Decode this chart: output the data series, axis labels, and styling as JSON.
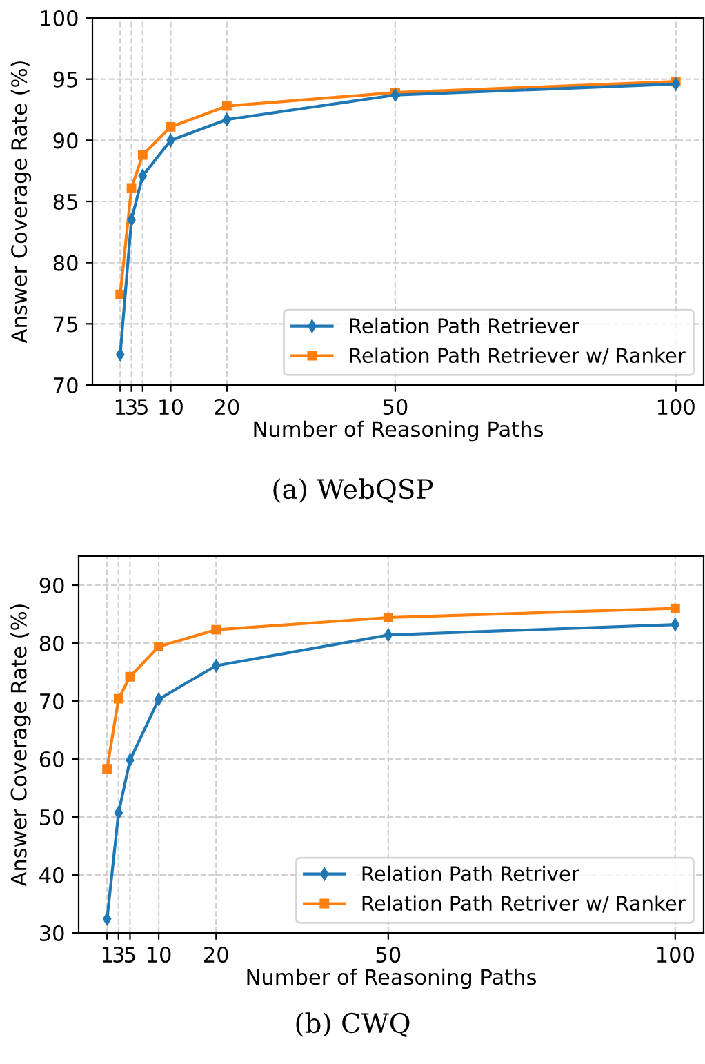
{
  "chart_data": [
    {
      "type": "line",
      "xlabel": "Number of Reasoning Paths",
      "ylabel": "Answer Coverage Rate (%)",
      "x": [
        1,
        3,
        5,
        10,
        20,
        50,
        100
      ],
      "series": [
        {
          "name": "Relation Path Retriever",
          "color": "#1f77b4",
          "marker": "diamond",
          "values": [
            72.5,
            83.5,
            87.1,
            90.0,
            91.7,
            93.7,
            94.6
          ]
        },
        {
          "name": "Relation Path Retriever w/ Ranker",
          "color": "#ff7f0e",
          "marker": "square",
          "values": [
            77.4,
            86.1,
            88.8,
            91.1,
            92.8,
            93.9,
            94.8
          ]
        }
      ],
      "xlim": [
        -3.95,
        104.95
      ],
      "xticks": [
        1,
        3,
        5,
        10,
        20,
        50,
        100
      ],
      "ylim": [
        70,
        100
      ],
      "yticks": [
        70,
        75,
        80,
        85,
        90,
        95,
        100
      ],
      "grid": true,
      "legend": "bottom right",
      "line_style": "solid",
      "annotations": [
        "(a) WebQSP"
      ]
    },
    {
      "type": "line",
      "xlabel": "Number of Reasoning Paths",
      "ylabel": "Answer Coverage Rate (%)",
      "x": [
        1,
        3,
        5,
        10,
        20,
        50,
        100
      ],
      "series": [
        {
          "name": "Relation Path Retriver",
          "color": "#1f77b4",
          "marker": "diamond",
          "values": [
            32.4,
            50.7,
            59.8,
            70.3,
            76.1,
            81.4,
            83.2
          ]
        },
        {
          "name": "Relation Path Retriver w/ Ranker",
          "color": "#ff7f0e",
          "marker": "square",
          "values": [
            58.3,
            70.4,
            74.2,
            79.4,
            82.3,
            84.4,
            86.0
          ]
        }
      ],
      "xlim": [
        -3.95,
        104.95
      ],
      "xticks": [
        1,
        3,
        5,
        10,
        20,
        50,
        100
      ],
      "ylim": [
        30,
        95
      ],
      "yticks": [
        30,
        40,
        50,
        60,
        70,
        80,
        90
      ],
      "grid": true,
      "legend": "bottom right",
      "line_style": "solid",
      "annotations": [
        "(b) CWQ"
      ]
    }
  ]
}
